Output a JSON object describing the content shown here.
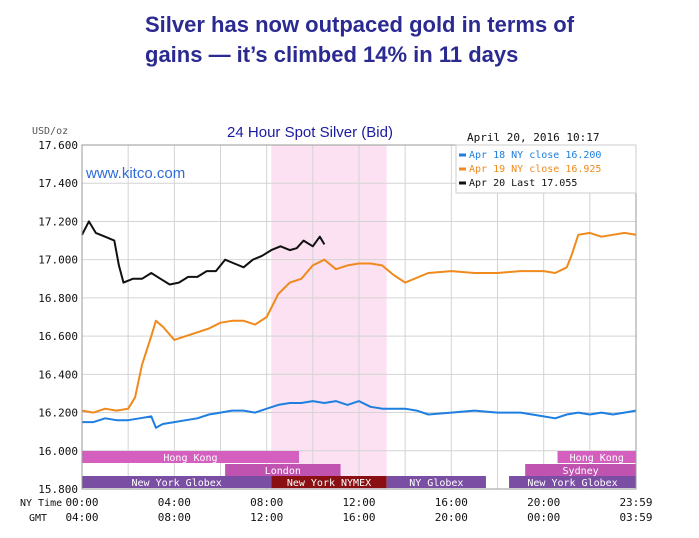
{
  "headline": "Silver has now outpaced gold in terms of gains — it’s climbed 14% in 11 days",
  "chart_data": {
    "type": "line",
    "title": "24 Hour Spot Silver (Bid)",
    "date_label": "April 20, 2016 10:17",
    "watermark": "www.kitco.com",
    "unit_label": "USD/oz",
    "ylim": [
      15.8,
      17.6
    ],
    "y_ticks": [
      "17.600",
      "17.400",
      "17.200",
      "17.000",
      "16.800",
      "16.600",
      "16.400",
      "16.200",
      "16.000",
      "15.800"
    ],
    "y_tick_values": [
      17.6,
      17.4,
      17.2,
      17.0,
      16.8,
      16.6,
      16.4,
      16.2,
      16.0,
      15.8
    ],
    "grid": true,
    "legend_position": "top-right",
    "row_labels": {
      "ny": "NY Time",
      "gmt": "GMT"
    },
    "x_ny_ticks": [
      "00:00",
      "04:00",
      "08:00",
      "12:00",
      "16:00",
      "20:00",
      "23:59"
    ],
    "x_gmt_ticks": [
      "04:00",
      "08:00",
      "12:00",
      "16:00",
      "20:00",
      "00:00",
      "03:59"
    ],
    "x_tick_hours": [
      0,
      4,
      8,
      12,
      16,
      20,
      24
    ],
    "shaded_hours": [
      8.2,
      13.2
    ],
    "series": [
      {
        "name": "Apr 18 NY close 16.200",
        "color": "#1e7fe0",
        "x": [
          0,
          0.5,
          1,
          1.5,
          2,
          2.5,
          3,
          3.2,
          3.5,
          4,
          4.5,
          5,
          5.5,
          6,
          6.5,
          7,
          7.5,
          8,
          8.5,
          9,
          9.5,
          10,
          10.5,
          11,
          11.5,
          12,
          12.5,
          13,
          13.5,
          14,
          14.5,
          15,
          16,
          17,
          18,
          19,
          20,
          20.5,
          21,
          21.5,
          22,
          22.5,
          23,
          23.5,
          24
        ],
        "y": [
          16.15,
          16.15,
          16.17,
          16.16,
          16.16,
          16.17,
          16.18,
          16.12,
          16.14,
          16.15,
          16.16,
          16.17,
          16.19,
          16.2,
          16.21,
          16.21,
          16.2,
          16.22,
          16.24,
          16.25,
          16.25,
          16.26,
          16.25,
          16.26,
          16.24,
          16.26,
          16.23,
          16.22,
          16.22,
          16.22,
          16.21,
          16.19,
          16.2,
          16.21,
          16.2,
          16.2,
          16.18,
          16.17,
          16.19,
          16.2,
          16.19,
          16.2,
          16.19,
          16.2,
          16.21
        ]
      },
      {
        "name": "Apr 19 NY close 16.925",
        "color": "#f08a1c",
        "x": [
          0,
          0.5,
          1,
          1.5,
          2,
          2.3,
          2.6,
          3,
          3.2,
          3.5,
          4,
          4.5,
          5,
          5.5,
          6,
          6.5,
          7,
          7.5,
          8,
          8.5,
          9,
          9.5,
          10,
          10.5,
          11,
          11.5,
          12,
          12.5,
          13,
          13.5,
          14,
          15,
          16,
          17,
          18,
          19,
          20,
          20.5,
          21,
          21.2,
          21.5,
          22,
          22.5,
          23,
          23.5,
          24
        ],
        "y": [
          16.21,
          16.2,
          16.22,
          16.21,
          16.22,
          16.28,
          16.45,
          16.6,
          16.68,
          16.65,
          16.58,
          16.6,
          16.62,
          16.64,
          16.67,
          16.68,
          16.68,
          16.66,
          16.7,
          16.82,
          16.88,
          16.9,
          16.97,
          17.0,
          16.95,
          16.97,
          16.98,
          16.98,
          16.97,
          16.92,
          16.88,
          16.93,
          16.94,
          16.93,
          16.93,
          16.94,
          16.94,
          16.93,
          16.96,
          17.02,
          17.13,
          17.14,
          17.12,
          17.13,
          17.14,
          17.13
        ]
      },
      {
        "name": "Apr 20 Last 17.055",
        "color": "#111111",
        "x": [
          0,
          0.3,
          0.6,
          1,
          1.4,
          1.6,
          1.8,
          2.2,
          2.6,
          3,
          3.4,
          3.8,
          4.2,
          4.6,
          5,
          5.4,
          5.8,
          6.2,
          6.6,
          7,
          7.4,
          7.8,
          8.2,
          8.6,
          9,
          9.3,
          9.6,
          10,
          10.3,
          10.5
        ],
        "y": [
          17.13,
          17.2,
          17.14,
          17.12,
          17.1,
          16.97,
          16.88,
          16.9,
          16.9,
          16.93,
          16.9,
          16.87,
          16.88,
          16.91,
          16.91,
          16.94,
          16.94,
          17.0,
          16.98,
          16.96,
          17.0,
          17.02,
          17.05,
          17.07,
          17.05,
          17.06,
          17.1,
          17.07,
          17.12,
          17.08
        ]
      }
    ],
    "sessions": [
      {
        "label": "Hong Kong",
        "start": 0,
        "end": 9.4,
        "row": 0,
        "color": "#d45fbf",
        "text_color": "#ffffff"
      },
      {
        "label": "Hong Kong",
        "start": 20.6,
        "end": 24,
        "row": 0,
        "color": "#d45fbf",
        "text_color": "#ffffff"
      },
      {
        "label": "London",
        "start": 6.2,
        "end": 11.2,
        "row": 1,
        "color": "#c052b0",
        "text_color": "#ffffff"
      },
      {
        "label": "Sydney",
        "start": 19.2,
        "end": 24,
        "row": 1,
        "color": "#c052b0",
        "text_color": "#ffffff"
      },
      {
        "label": "New York Globex",
        "start": 0,
        "end": 8.2,
        "row": 2,
        "color": "#7a4fa3",
        "text_color": "#ffffff"
      },
      {
        "label": "New York NYMEX",
        "start": 8.2,
        "end": 13.2,
        "row": 2,
        "color": "#8a0f12",
        "text_color": "#ffffff"
      },
      {
        "label": "NY Globex",
        "start": 13.2,
        "end": 17.5,
        "row": 2,
        "color": "#7a4fa3",
        "text_color": "#ffffff"
      },
      {
        "label": "New York Globex",
        "start": 18.5,
        "end": 24,
        "row": 2,
        "color": "#7a4fa3",
        "text_color": "#ffffff"
      }
    ]
  }
}
